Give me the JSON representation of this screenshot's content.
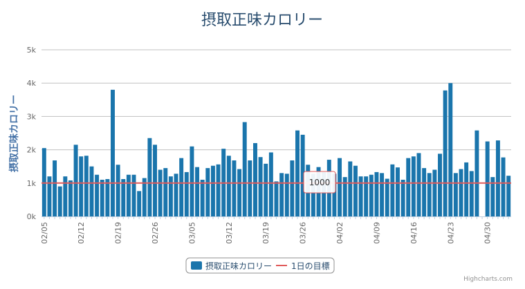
{
  "chart_data": {
    "type": "bar",
    "title": "摂取正味カロリー",
    "ylabel": "摂取正味カロリー",
    "xlabel": "",
    "ylim": [
      0,
      5000
    ],
    "y_ticks": [
      "0k",
      "1k",
      "2k",
      "3k",
      "4k",
      "5k"
    ],
    "y_tick_values": [
      0,
      1000,
      2000,
      3000,
      4000,
      5000
    ],
    "x_tick_labels": [
      "02/05",
      "02/12",
      "02/19",
      "02/26",
      "03/05",
      "03/12",
      "03/19",
      "03/26",
      "04/02",
      "04/09",
      "04/16",
      "04/23",
      "04/30"
    ],
    "start_date": "02/05",
    "series": [
      {
        "name": "摂取正味カロリー",
        "color": "#1a75ac",
        "values": [
          2050,
          1200,
          1680,
          900,
          1200,
          1080,
          2150,
          1800,
          1820,
          1500,
          1250,
          1100,
          1120,
          3800,
          1550,
          1120,
          1250,
          1250,
          760,
          1150,
          2350,
          2150,
          1400,
          1450,
          1200,
          1280,
          1750,
          1330,
          2100,
          1480,
          1100,
          1450,
          1520,
          1560,
          2030,
          1820,
          1680,
          1420,
          2830,
          1680,
          2200,
          1780,
          1580,
          1920,
          1050,
          1300,
          1280,
          1680,
          2580,
          2450,
          1550,
          1280,
          1480,
          1330,
          1700,
          1280,
          1750,
          1180,
          1650,
          1520,
          1200,
          1200,
          1250,
          1330,
          1300,
          1130,
          1560,
          1470,
          1100,
          1750,
          1800,
          1900,
          1450,
          1300,
          1400,
          1880,
          3780,
          4000,
          1300,
          1420,
          1620,
          1360,
          2580,
          0,
          2250,
          1180,
          2280,
          1770,
          1220
        ]
      }
    ],
    "target_line": {
      "name": "1日の目標",
      "value": 1000,
      "color": "#e05a5a"
    },
    "tooltip": {
      "text": "1000"
    },
    "legend": [
      "摂取正味カロリー",
      "1日の目標"
    ],
    "legend_position": "bottom",
    "grid": true,
    "credits": "Highcharts.com"
  }
}
